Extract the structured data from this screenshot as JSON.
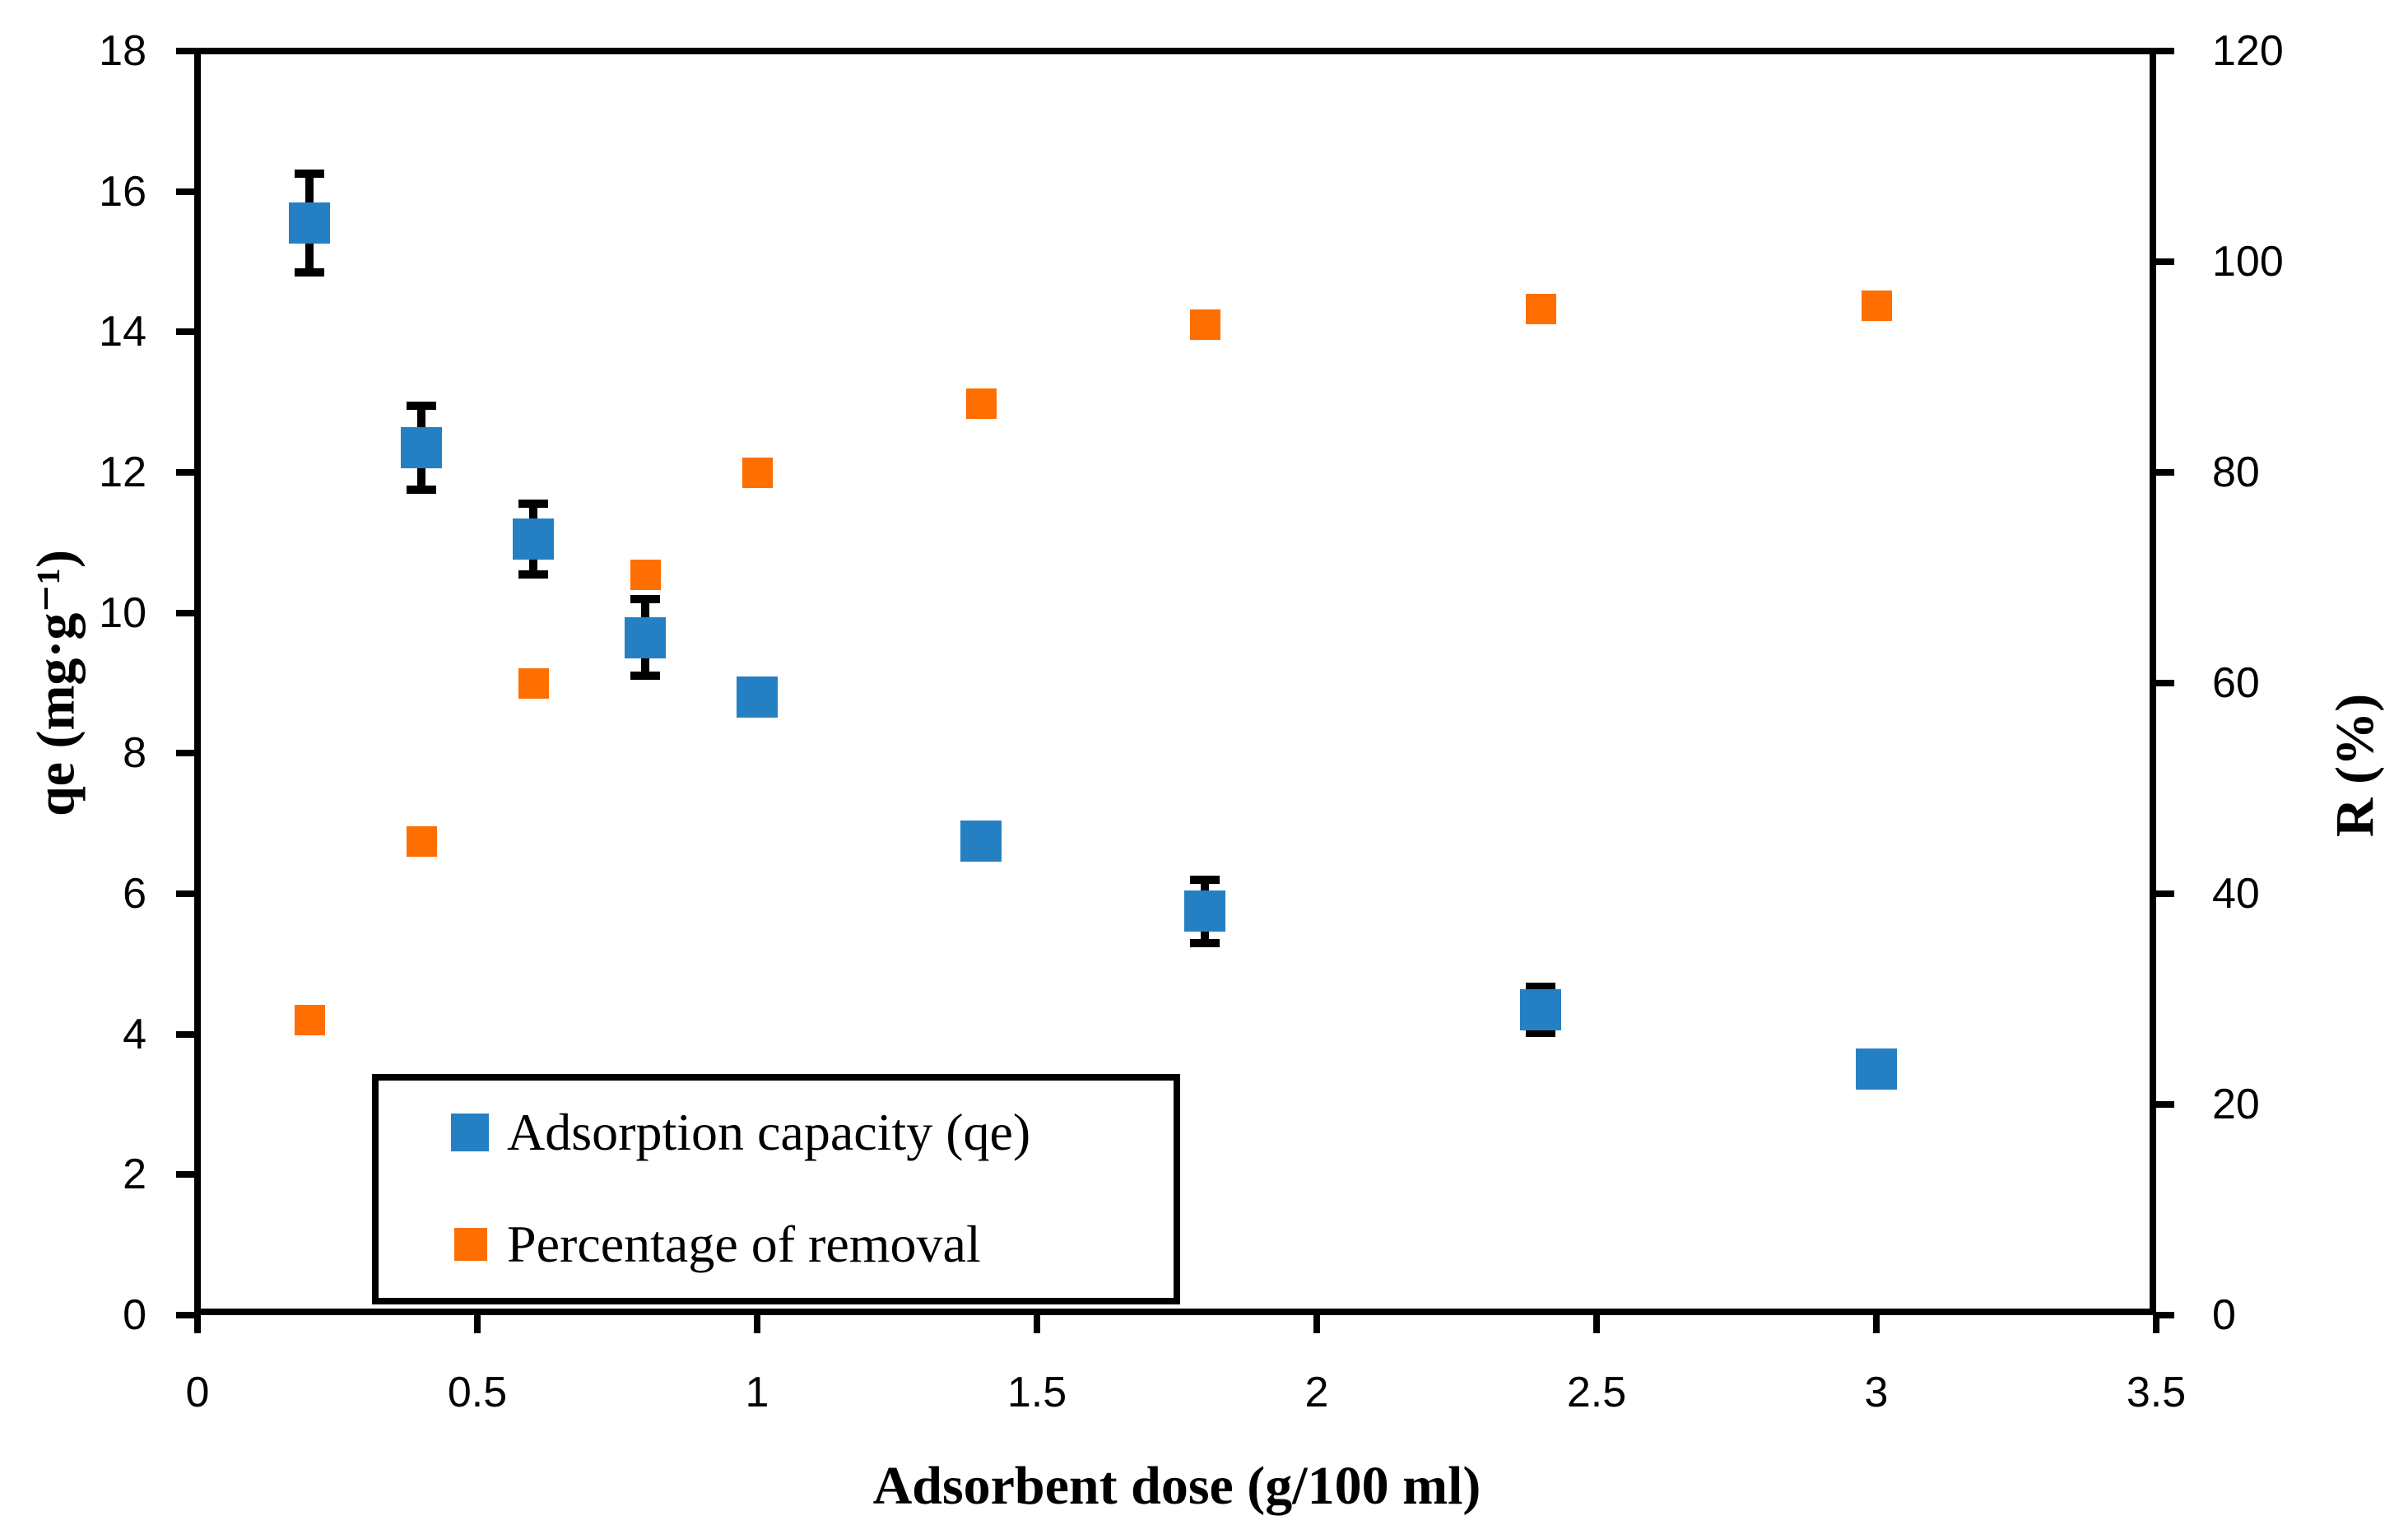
{
  "background": "#ffffff",
  "chart_data": {
    "type": "scatter",
    "title": "",
    "xlabel": "Adsorbent dose (g/100 ml)",
    "ylabel_left": "qe (mg·g⁻¹)",
    "ylabel_right": "R (%)",
    "xlim": [
      0,
      3.5
    ],
    "ylim_left": [
      0,
      18
    ],
    "ylim_right": [
      0,
      120
    ],
    "xticks": [
      0,
      0.5,
      1,
      1.5,
      2,
      2.5,
      3,
      3.5
    ],
    "yticks_left": [
      0,
      2,
      4,
      6,
      8,
      10,
      12,
      14,
      16,
      18
    ],
    "yticks_right": [
      0,
      20,
      40,
      60,
      80,
      100,
      120
    ],
    "grid": false,
    "legend_position": "inside-bottom-left",
    "series": [
      {
        "name": "Adsorption capacity (qe)",
        "axis": "left",
        "color": "#2580c3",
        "marker": "square",
        "marker_size": 50,
        "x": [
          0.2,
          0.4,
          0.6,
          0.8,
          1.0,
          1.4,
          1.8,
          2.4,
          3.0
        ],
        "y": [
          15.55,
          12.35,
          11.05,
          9.65,
          8.8,
          6.75,
          5.75,
          4.35,
          3.5
        ],
        "yerr": [
          0.7,
          0.6,
          0.5,
          0.55,
          0,
          0,
          0.45,
          0.33,
          0
        ]
      },
      {
        "name": "Percentage of removal",
        "axis": "right",
        "color": "#fe6e00",
        "marker": "square",
        "marker_size": 37,
        "x": [
          0.2,
          0.4,
          0.6,
          0.8,
          1.0,
          1.4,
          1.8,
          2.4,
          3.0
        ],
        "y": [
          28,
          45,
          60,
          70.3,
          80,
          86.5,
          94,
          95.5,
          95.8
        ],
        "yerr": [
          0,
          0,
          0,
          0,
          0,
          0,
          0,
          0,
          0
        ]
      }
    ]
  }
}
